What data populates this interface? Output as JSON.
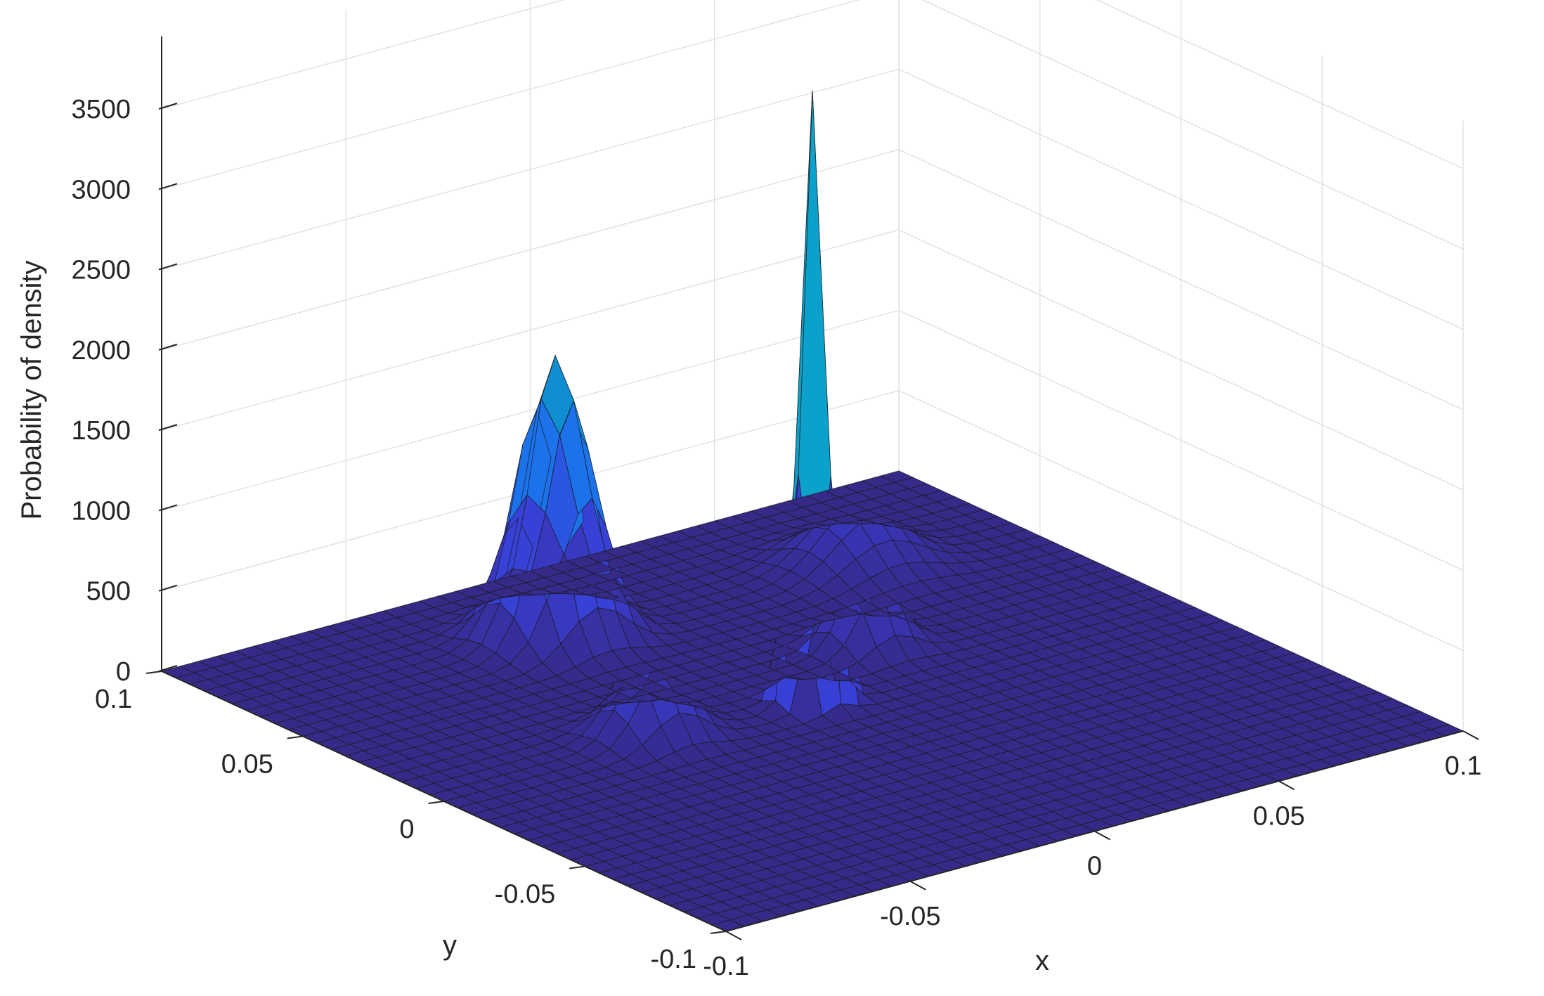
{
  "chart_data": {
    "type": "surface",
    "title": "",
    "xlabel": "x",
    "ylabel": "y",
    "zlabel": "Probability of density",
    "xlim": [
      -0.1,
      0.1
    ],
    "ylim": [
      -0.1,
      0.1
    ],
    "zlim": [
      0,
      3800
    ],
    "x_ticks": [
      -0.1,
      -0.05,
      0,
      0.05,
      0.1
    ],
    "y_ticks": [
      -0.1,
      -0.05,
      0,
      0.05,
      0.1
    ],
    "z_ticks": [
      0,
      500,
      1000,
      1500,
      2000,
      2500,
      3000,
      3500
    ],
    "x_tick_labels": [
      "-0.1",
      "-0.05",
      "0",
      "0.05",
      "0.1"
    ],
    "y_tick_labels": [
      "-0.1",
      "-0.05",
      "0",
      "0.05",
      "0.1"
    ],
    "z_tick_labels": [
      "0",
      "500",
      "1000",
      "1500",
      "2000",
      "2500",
      "3000",
      "3500"
    ],
    "grid": true,
    "colormap": "parula",
    "mesh_divisions": 40,
    "peaks": [
      {
        "x": -0.02,
        "y": 0.065,
        "height": 1750,
        "width": 0.008
      },
      {
        "x": 0.0,
        "y": 0.0,
        "height": 3800,
        "width": 0.0035
      },
      {
        "x": -0.04,
        "y": 0.005,
        "height": 600,
        "width": 0.007
      },
      {
        "x": 0.03,
        "y": 0.02,
        "height": 570,
        "width": 0.006
      },
      {
        "x": 0.058,
        "y": 0.06,
        "height": 380,
        "width": 0.01
      }
    ]
  }
}
